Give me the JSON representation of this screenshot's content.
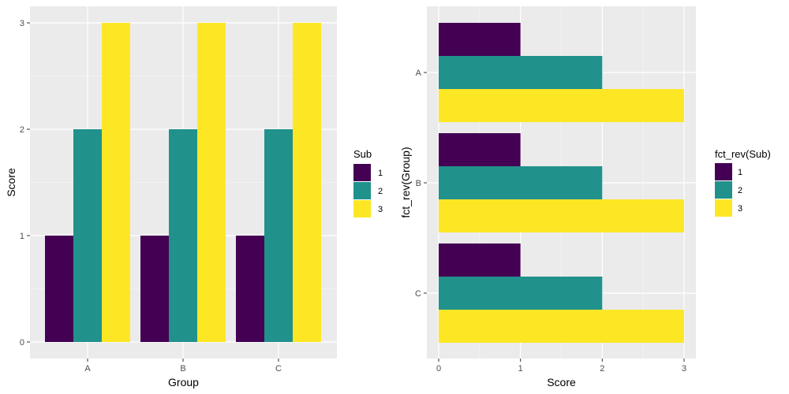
{
  "palette": {
    "panel": "#ebebeb",
    "grid_major": "#ffffff",
    "grid_minor": "#f5f5f5",
    "tick": "#333333"
  },
  "chart_data": [
    {
      "type": "bar",
      "orientation": "vertical",
      "title": "",
      "xlabel": "Group",
      "ylabel": "Score",
      "categories": [
        "A",
        "B",
        "C"
      ],
      "ylim": [
        0,
        3
      ],
      "yticks": [
        0,
        1,
        2,
        3
      ],
      "ytick_labels": [
        "0",
        "1",
        "2",
        "3"
      ],
      "grid": true,
      "legend": {
        "title": "Sub",
        "position": "right"
      },
      "series": [
        {
          "name": "1",
          "color": "#440154",
          "values": [
            1,
            1,
            1
          ]
        },
        {
          "name": "2",
          "color": "#21918c",
          "values": [
            2,
            2,
            2
          ]
        },
        {
          "name": "3",
          "color": "#fde725",
          "values": [
            3,
            3,
            3
          ]
        }
      ]
    },
    {
      "type": "bar",
      "orientation": "horizontal",
      "title": "",
      "xlabel": "Score",
      "ylabel": "fct_rev(Group)",
      "categories": [
        "A",
        "B",
        "C"
      ],
      "xlim": [
        0,
        3
      ],
      "xticks": [
        0,
        1,
        2,
        3
      ],
      "xtick_labels": [
        "0",
        "1",
        "2",
        "3"
      ],
      "grid": true,
      "legend": {
        "title": "fct_rev(Sub)",
        "position": "right"
      },
      "series": [
        {
          "name": "1",
          "color": "#440154",
          "values": [
            1,
            1,
            1
          ]
        },
        {
          "name": "2",
          "color": "#21918c",
          "values": [
            2,
            2,
            2
          ]
        },
        {
          "name": "3",
          "color": "#fde725",
          "values": [
            3,
            3,
            3
          ]
        }
      ]
    }
  ]
}
